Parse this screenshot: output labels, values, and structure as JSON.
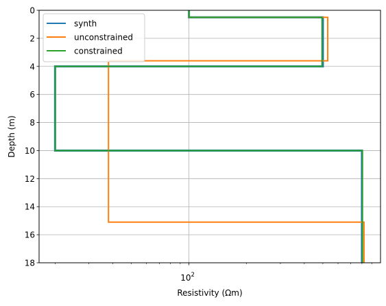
{
  "chart_data": {
    "type": "line",
    "title": "",
    "xlabel": "Resistivity (Ωm)",
    "ylabel": "Depth (m)",
    "xscale": "log",
    "xlim": [
      16.5,
      1000
    ],
    "ylim": [
      18,
      0
    ],
    "y_inverted": true,
    "xticks": [
      {
        "value": 100,
        "label": "10",
        "exponent": "2"
      }
    ],
    "yticks": [
      0,
      2,
      4,
      6,
      8,
      10,
      12,
      14,
      16,
      18
    ],
    "grid": true,
    "legend": {
      "placement": "top-left"
    },
    "series": [
      {
        "name": "synth",
        "color": "#1f77b4",
        "x": [
          100,
          100,
          500,
          500,
          20,
          20,
          800,
          800
        ],
        "y": [
          0,
          0.5,
          0.5,
          4,
          4,
          10,
          10,
          18
        ]
      },
      {
        "name": "unconstrained",
        "color": "#ff7f0e",
        "x": [
          100,
          100,
          530,
          530,
          38,
          38,
          820,
          820
        ],
        "y": [
          0,
          0.5,
          0.5,
          3.6,
          3.6,
          15.1,
          15.1,
          18
        ]
      },
      {
        "name": "constrained",
        "color": "#2ca02c",
        "x": [
          100,
          100,
          495,
          495,
          20,
          20,
          805,
          805
        ],
        "y": [
          0,
          0.5,
          0.5,
          4,
          4,
          10,
          10,
          18
        ]
      }
    ]
  }
}
